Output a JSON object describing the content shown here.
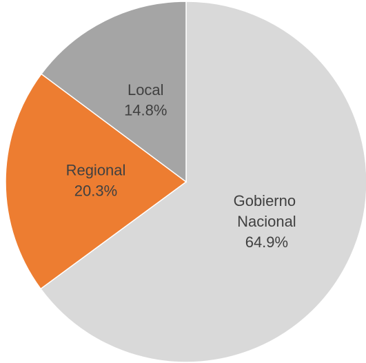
{
  "chart_data": {
    "type": "pie",
    "categories": [
      "Gobierno Nacional",
      "Regional",
      "Local"
    ],
    "values": [
      64.9,
      20.3,
      14.8
    ],
    "value_labels": [
      "64.9%",
      "20.3%",
      "14.8%"
    ],
    "colors": [
      "#d9d9d9",
      "#ed7d31",
      "#a5a5a5"
    ]
  }
}
